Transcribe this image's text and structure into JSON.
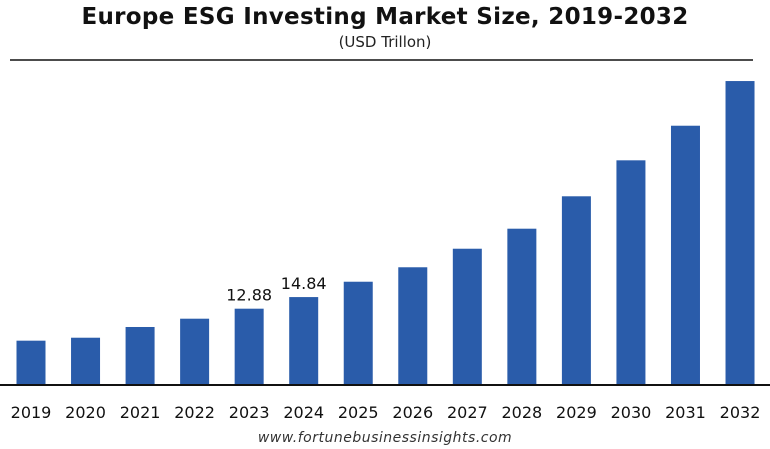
{
  "chart_data": {
    "type": "bar",
    "title": "Europe ESG Investing Market Size, 2019-2032",
    "subtitle": "(USD Trillon)",
    "xlabel": "",
    "ylabel": "",
    "categories": [
      "2019",
      "2020",
      "2021",
      "2022",
      "2023",
      "2024",
      "2025",
      "2026",
      "2027",
      "2028",
      "2029",
      "2030",
      "2031",
      "2032"
    ],
    "values": [
      7.48,
      7.98,
      9.79,
      11.19,
      12.88,
      14.84,
      17.43,
      19.87,
      23.0,
      26.38,
      31.85,
      37.92,
      43.76,
      51.3
    ],
    "data_labels": {
      "2023": "12.88",
      "2024": "14.84"
    },
    "ylim": [
      0,
      55
    ],
    "grid": false,
    "y_axis_visible": false,
    "bar_color": "#2a5caa"
  },
  "source": "www.fortunebusinessinsights.com"
}
